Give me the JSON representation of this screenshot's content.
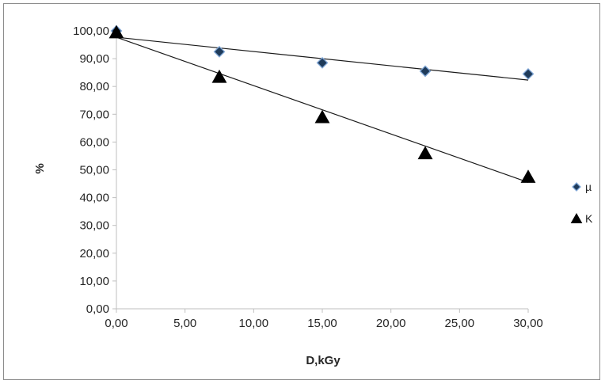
{
  "chart_data": {
    "type": "scatter",
    "title": "",
    "xlabel": "D,kGy",
    "ylabel": "%",
    "xlim": [
      0,
      30
    ],
    "ylim": [
      0,
      100
    ],
    "x_ticks": [
      0,
      5,
      10,
      15,
      20,
      25,
      30
    ],
    "y_ticks": [
      0,
      10,
      20,
      30,
      40,
      50,
      60,
      70,
      80,
      90,
      100
    ],
    "x_tick_labels": [
      "0,00",
      "5,00",
      "10,00",
      "15,00",
      "20,00",
      "25,00",
      "30,00"
    ],
    "y_tick_labels": [
      "0,00",
      "10,00",
      "20,00",
      "30,00",
      "40,00",
      "50,00",
      "60,00",
      "70,00",
      "80,00",
      "90,00",
      "100,00"
    ],
    "grid": false,
    "legend_position": "right",
    "series": [
      {
        "name": "µ",
        "marker": "diamond",
        "color": "#1f3b5a",
        "x": [
          0,
          7.5,
          15,
          22.5,
          30
        ],
        "y": [
          100,
          92.5,
          88.5,
          85.5,
          84.5
        ],
        "trendline": {
          "x": [
            0,
            30
          ],
          "y": [
            97.7,
            82.3
          ]
        }
      },
      {
        "name": "K",
        "marker": "triangle",
        "color": "#000000",
        "x": [
          0,
          7.5,
          15,
          22.5,
          30
        ],
        "y": [
          99.5,
          83.5,
          69,
          56,
          47.5
        ],
        "trendline": {
          "x": [
            0,
            30
          ],
          "y": [
            97.7,
            45.5
          ]
        }
      }
    ]
  },
  "colors": {
    "axis": "#bfbfbf",
    "trendline": "#1a1a1a",
    "diamond_outline": "#7fa6d6"
  }
}
